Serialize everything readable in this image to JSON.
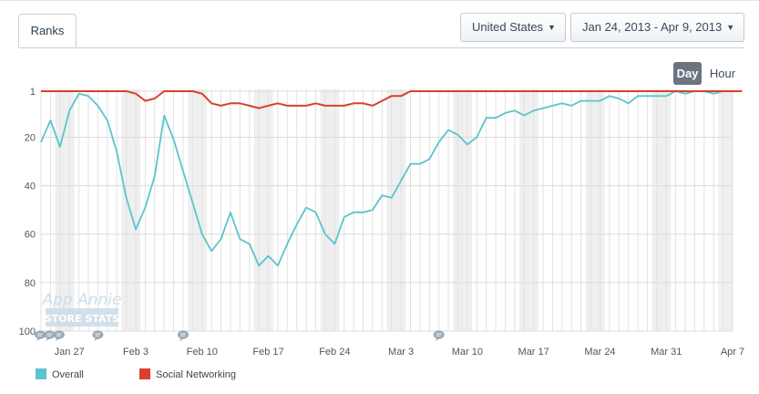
{
  "tabs": [
    {
      "label": "Ranks"
    }
  ],
  "filters": {
    "country": "United States",
    "date_range": "Jan 24, 2013 - Apr 9, 2013"
  },
  "granularity": {
    "day_label": "Day",
    "hour_label": "Hour",
    "selected": "Day"
  },
  "watermark": {
    "line1": "App Annie",
    "line2": "STORE STATS"
  },
  "colors": {
    "overall": "#5bc4cc",
    "social": "#d9412c"
  },
  "chart_data": {
    "type": "line",
    "y_axis": {
      "range": [
        1,
        100
      ],
      "inverted": true,
      "ticks": [
        1,
        20,
        40,
        60,
        80,
        100
      ]
    },
    "x_axis": {
      "start": "Jan 24",
      "end": "Apr 9",
      "tick_labels": [
        "Jan 27",
        "Feb 3",
        "Feb 10",
        "Feb 17",
        "Feb 24",
        "Mar 3",
        "Mar 10",
        "Mar 17",
        "Mar 24",
        "Mar 31",
        "Apr 7"
      ]
    },
    "grid": true,
    "weekend_shading": true,
    "series": [
      {
        "name": "Overall",
        "color": "#5bc4cc",
        "values": [
          22,
          13,
          24,
          9,
          2,
          3,
          7,
          13,
          26,
          45,
          58,
          49,
          36,
          11,
          21,
          34,
          47,
          60,
          67,
          62,
          51,
          62,
          64,
          73,
          69,
          73,
          64,
          56,
          49,
          51,
          60,
          64,
          53,
          51,
          51,
          50,
          44,
          45,
          38,
          31,
          31,
          29,
          22,
          17,
          19,
          23,
          20,
          12,
          12,
          10,
          9,
          11,
          9,
          8,
          7,
          6,
          7,
          5,
          5,
          5,
          3,
          4,
          6,
          3,
          3,
          3,
          3,
          1,
          2,
          1,
          1,
          2,
          1,
          1
        ],
        "dates": [
          "Jan 24",
          "Jan 25",
          "Jan 26",
          "Jan 27",
          "Jan 28",
          "Jan 29",
          "Jan 30",
          "Jan 31",
          "Feb 1",
          "Feb 2",
          "Feb 3",
          "Feb 4",
          "Feb 5",
          "Feb 6",
          "Feb 7",
          "Feb 8",
          "Feb 9",
          "Feb 10",
          "Feb 11",
          "Feb 12",
          "Feb 13",
          "Feb 14",
          "Feb 15",
          "Feb 16",
          "Feb 17",
          "Feb 18",
          "Feb 19",
          "Feb 20",
          "Feb 21",
          "Feb 22",
          "Feb 23",
          "Feb 24",
          "Feb 25",
          "Feb 26",
          "Feb 27",
          "Feb 28",
          "Mar 1",
          "Mar 2",
          "Mar 3",
          "Mar 4",
          "Mar 5",
          "Mar 6",
          "Mar 7",
          "Mar 8",
          "Mar 9",
          "Mar 10",
          "Mar 11",
          "Mar 12",
          "Mar 13",
          "Mar 14",
          "Mar 15",
          "Mar 16",
          "Mar 17",
          "Mar 18",
          "Mar 19",
          "Mar 20",
          "Mar 21",
          "Mar 22",
          "Mar 23",
          "Mar 24",
          "Mar 25",
          "Mar 26",
          "Mar 27",
          "Mar 28",
          "Mar 29",
          "Mar 30",
          "Mar 31",
          "Apr 1",
          "Apr 2",
          "Apr 3",
          "Apr 4",
          "Apr 5",
          "Apr 6",
          "Apr 7"
        ]
      },
      {
        "name": "Social Networking",
        "color": "#d9412c",
        "values": [
          1,
          0,
          0,
          0,
          0,
          0,
          0,
          0,
          0,
          1,
          2,
          5,
          4,
          1,
          0,
          0,
          1,
          2,
          6,
          7,
          6,
          6,
          7,
          8,
          7,
          6,
          7,
          7,
          7,
          6,
          7,
          7,
          7,
          6,
          6,
          7,
          5,
          3,
          3,
          1,
          1,
          0,
          0,
          0,
          0,
          0,
          0,
          0,
          0,
          0,
          0,
          0,
          0,
          0,
          0,
          0,
          0,
          0,
          0,
          0,
          0,
          0,
          0,
          0,
          0,
          0,
          0,
          0,
          0,
          0,
          0,
          0,
          0,
          0,
          0
        ]
      }
    ],
    "annotations_count": 6
  }
}
